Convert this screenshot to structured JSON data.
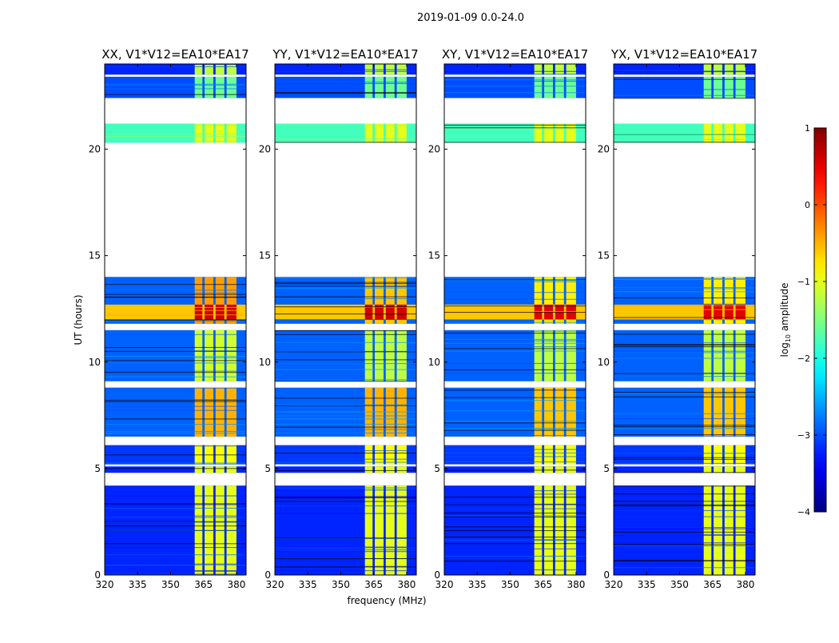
{
  "chart_data": {
    "type": "heatmap",
    "title": "2019-01-09 0.0-24.0",
    "xlabel": "frequency (MHz)",
    "ylabel": "UT (hours)",
    "xlim": [
      320,
      384.4
    ],
    "ylim": [
      0,
      24
    ],
    "xticks": [
      320,
      335,
      350,
      365,
      380
    ],
    "yticks": [
      0,
      5,
      10,
      15,
      20
    ],
    "colorbar": {
      "label_main": "log",
      "label_sub": "10",
      "label_rest": " amplitude",
      "range": [
        -4,
        1
      ],
      "ticks": [
        1,
        0,
        -1,
        -2,
        -3,
        -4
      ],
      "tick_labels": [
        "1",
        "0",
        "−1",
        "−2",
        "−3",
        "−4"
      ]
    },
    "rfi_band_mhz": [
      360.7,
      380
    ],
    "subchannels_mhz": [
      [
        361,
        364.5
      ],
      [
        365.5,
        369.5
      ],
      [
        370.5,
        374.5
      ],
      [
        375.5,
        380
      ]
    ],
    "panels": [
      {
        "title": "XX, V1*V12=EA10*EA17",
        "show_ylabel": true,
        "segments": [
          [
            23.5,
            24,
            -3.2,
            -1.2
          ],
          [
            22.4,
            23.4,
            -3.0,
            -1.6
          ],
          [
            20.3,
            21.2,
            -1.8,
            -1.0
          ],
          [
            11.8,
            14.0,
            -2.9,
            -0.4
          ],
          [
            12.0,
            12.7,
            -0.6,
            0.6
          ],
          [
            9.1,
            11.5,
            -2.9,
            -1.1
          ],
          [
            6.5,
            8.8,
            -2.9,
            -0.5
          ],
          [
            5.2,
            6.1,
            -3.1,
            -0.9
          ],
          [
            4.8,
            5.1,
            -3.2,
            -1.0
          ],
          [
            0,
            4.2,
            -3.2,
            -1.0
          ]
        ]
      },
      {
        "title": "YY, V1*V12=EA10*EA17",
        "show_ylabel": false,
        "segments": [
          [
            23.5,
            24,
            -3.2,
            -1.2
          ],
          [
            22.4,
            23.4,
            -3.0,
            -1.6
          ],
          [
            20.3,
            21.2,
            -1.8,
            -1.0
          ],
          [
            11.8,
            14.0,
            -2.9,
            -0.6
          ],
          [
            12.0,
            12.7,
            -0.6,
            0.6
          ],
          [
            9.1,
            11.5,
            -2.9,
            -1.2
          ],
          [
            6.5,
            8.8,
            -2.9,
            -0.5
          ],
          [
            5.2,
            6.1,
            -3.1,
            -0.9
          ],
          [
            4.8,
            5.1,
            -3.2,
            -1.0
          ],
          [
            0,
            4.2,
            -3.2,
            -1.0
          ]
        ]
      },
      {
        "title": "XY, V1*V12=EA10*EA17",
        "show_ylabel": false,
        "segments": [
          [
            23.5,
            24,
            -3.2,
            -1.2
          ],
          [
            22.4,
            23.4,
            -3.0,
            -1.6
          ],
          [
            20.3,
            21.2,
            -1.8,
            -1.0
          ],
          [
            11.8,
            14.0,
            -2.9,
            -0.8
          ],
          [
            12.0,
            12.7,
            -0.6,
            0.5
          ],
          [
            9.1,
            11.5,
            -2.9,
            -1.2
          ],
          [
            6.5,
            8.8,
            -2.9,
            -0.6
          ],
          [
            5.2,
            6.1,
            -3.1,
            -0.9
          ],
          [
            4.8,
            5.1,
            -3.2,
            -1.0
          ],
          [
            0,
            4.2,
            -3.2,
            -1.0
          ]
        ]
      },
      {
        "title": "YX, V1*V12=EA10*EA17",
        "show_ylabel": false,
        "segments": [
          [
            23.5,
            24,
            -3.2,
            -1.2
          ],
          [
            22.4,
            23.4,
            -3.0,
            -1.6
          ],
          [
            20.3,
            21.2,
            -1.8,
            -1.0
          ],
          [
            11.8,
            14.0,
            -2.9,
            -0.8
          ],
          [
            12.0,
            12.7,
            -0.6,
            0.5
          ],
          [
            9.1,
            11.5,
            -2.9,
            -1.2
          ],
          [
            6.5,
            8.8,
            -2.9,
            -0.6
          ],
          [
            5.2,
            6.1,
            -3.1,
            -0.9
          ],
          [
            4.8,
            5.1,
            -3.2,
            -1.0
          ],
          [
            0,
            4.2,
            -3.2,
            -1.0
          ]
        ]
      }
    ]
  }
}
